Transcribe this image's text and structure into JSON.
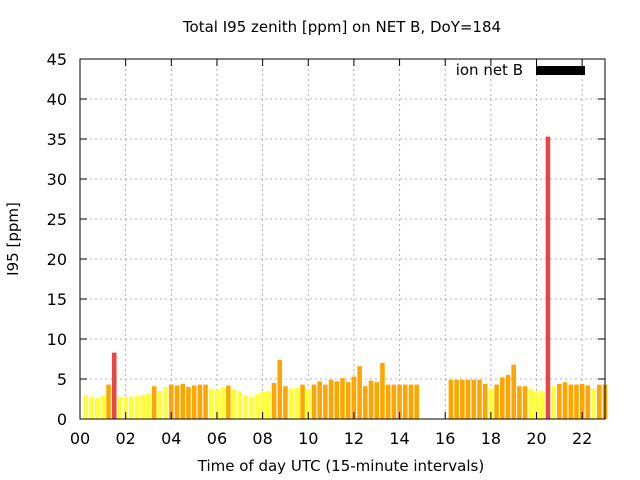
{
  "chart_data": {
    "type": "bar",
    "title": "Total I95 zenith [ppm] on NET B, DoY=184",
    "xlabel": "Time of day UTC (15-minute intervals)",
    "ylabel": "I95 [ppm]",
    "xlim": [
      0,
      23
    ],
    "ylim": [
      0,
      45
    ],
    "x_ticks": [
      "00",
      "02",
      "04",
      "06",
      "08",
      "10",
      "12",
      "14",
      "16",
      "18",
      "20",
      "22"
    ],
    "x_tick_values": [
      0,
      2,
      4,
      6,
      8,
      10,
      12,
      14,
      16,
      18,
      20,
      22
    ],
    "y_ticks": [
      0,
      5,
      10,
      15,
      20,
      25,
      30,
      35,
      40,
      45
    ],
    "grid": true,
    "legend_position": "top-right",
    "colors": {
      "low": "#ffff33",
      "medium": "#ffa500",
      "high": "#e84545",
      "legend": "#000000"
    },
    "series": [
      {
        "name": "ion net B",
        "bar_width_hours": 0.2,
        "points": [
          {
            "x": 0.25,
            "y": 3.0,
            "level": "low"
          },
          {
            "x": 0.5,
            "y": 2.8,
            "level": "low"
          },
          {
            "x": 0.75,
            "y": 2.6,
            "level": "low"
          },
          {
            "x": 1.0,
            "y": 2.9,
            "level": "low"
          },
          {
            "x": 1.25,
            "y": 4.3,
            "level": "medium"
          },
          {
            "x": 1.5,
            "y": 8.3,
            "level": "high"
          },
          {
            "x": 1.75,
            "y": 2.8,
            "level": "low"
          },
          {
            "x": 2.0,
            "y": 2.8,
            "level": "low"
          },
          {
            "x": 2.25,
            "y": 2.8,
            "level": "low"
          },
          {
            "x": 2.5,
            "y": 2.9,
            "level": "low"
          },
          {
            "x": 2.75,
            "y": 3.0,
            "level": "low"
          },
          {
            "x": 3.0,
            "y": 3.2,
            "level": "low"
          },
          {
            "x": 3.25,
            "y": 4.1,
            "level": "medium"
          },
          {
            "x": 3.5,
            "y": 3.5,
            "level": "low"
          },
          {
            "x": 3.75,
            "y": 4.0,
            "level": "low"
          },
          {
            "x": 4.0,
            "y": 4.3,
            "level": "medium"
          },
          {
            "x": 4.25,
            "y": 4.2,
            "level": "medium"
          },
          {
            "x": 4.5,
            "y": 4.4,
            "level": "medium"
          },
          {
            "x": 4.75,
            "y": 4.0,
            "level": "medium"
          },
          {
            "x": 5.0,
            "y": 4.2,
            "level": "medium"
          },
          {
            "x": 5.25,
            "y": 4.3,
            "level": "medium"
          },
          {
            "x": 5.5,
            "y": 4.3,
            "level": "medium"
          },
          {
            "x": 5.75,
            "y": 3.8,
            "level": "low"
          },
          {
            "x": 6.0,
            "y": 3.6,
            "level": "low"
          },
          {
            "x": 6.25,
            "y": 3.9,
            "level": "low"
          },
          {
            "x": 6.5,
            "y": 4.2,
            "level": "medium"
          },
          {
            "x": 6.75,
            "y": 3.7,
            "level": "low"
          },
          {
            "x": 7.0,
            "y": 3.5,
            "level": "low"
          },
          {
            "x": 7.25,
            "y": 3.0,
            "level": "low"
          },
          {
            "x": 7.5,
            "y": 2.8,
            "level": "low"
          },
          {
            "x": 7.75,
            "y": 3.1,
            "level": "low"
          },
          {
            "x": 8.0,
            "y": 3.4,
            "level": "low"
          },
          {
            "x": 8.25,
            "y": 3.5,
            "level": "low"
          },
          {
            "x": 8.5,
            "y": 4.5,
            "level": "medium"
          },
          {
            "x": 8.75,
            "y": 7.4,
            "level": "medium"
          },
          {
            "x": 9.0,
            "y": 4.1,
            "level": "medium"
          },
          {
            "x": 9.25,
            "y": 3.8,
            "level": "low"
          },
          {
            "x": 9.5,
            "y": 3.9,
            "level": "low"
          },
          {
            "x": 9.75,
            "y": 4.3,
            "level": "medium"
          },
          {
            "x": 10.0,
            "y": 3.7,
            "level": "low"
          },
          {
            "x": 10.25,
            "y": 4.3,
            "level": "medium"
          },
          {
            "x": 10.5,
            "y": 4.7,
            "level": "medium"
          },
          {
            "x": 10.75,
            "y": 4.3,
            "level": "medium"
          },
          {
            "x": 11.0,
            "y": 4.9,
            "level": "medium"
          },
          {
            "x": 11.25,
            "y": 4.7,
            "level": "medium"
          },
          {
            "x": 11.5,
            "y": 5.1,
            "level": "medium"
          },
          {
            "x": 11.75,
            "y": 4.6,
            "level": "medium"
          },
          {
            "x": 12.0,
            "y": 5.3,
            "level": "medium"
          },
          {
            "x": 12.25,
            "y": 6.6,
            "level": "medium"
          },
          {
            "x": 12.5,
            "y": 4.1,
            "level": "medium"
          },
          {
            "x": 12.75,
            "y": 4.8,
            "level": "medium"
          },
          {
            "x": 13.0,
            "y": 4.6,
            "level": "medium"
          },
          {
            "x": 13.25,
            "y": 7.0,
            "level": "medium"
          },
          {
            "x": 13.5,
            "y": 4.3,
            "level": "medium"
          },
          {
            "x": 13.75,
            "y": 4.3,
            "level": "medium"
          },
          {
            "x": 14.0,
            "y": 4.3,
            "level": "medium"
          },
          {
            "x": 14.25,
            "y": 4.3,
            "level": "medium"
          },
          {
            "x": 14.5,
            "y": 4.3,
            "level": "medium"
          },
          {
            "x": 14.75,
            "y": 4.3,
            "level": "medium"
          },
          {
            "x": 16.25,
            "y": 4.9,
            "level": "medium"
          },
          {
            "x": 16.5,
            "y": 4.9,
            "level": "medium"
          },
          {
            "x": 16.75,
            "y": 4.9,
            "level": "medium"
          },
          {
            "x": 17.0,
            "y": 4.9,
            "level": "medium"
          },
          {
            "x": 17.25,
            "y": 4.9,
            "level": "medium"
          },
          {
            "x": 17.5,
            "y": 4.9,
            "level": "medium"
          },
          {
            "x": 17.75,
            "y": 4.4,
            "level": "medium"
          },
          {
            "x": 18.0,
            "y": 3.8,
            "level": "low"
          },
          {
            "x": 18.25,
            "y": 4.3,
            "level": "medium"
          },
          {
            "x": 18.5,
            "y": 5.2,
            "level": "medium"
          },
          {
            "x": 18.75,
            "y": 5.5,
            "level": "medium"
          },
          {
            "x": 19.0,
            "y": 6.8,
            "level": "medium"
          },
          {
            "x": 19.25,
            "y": 4.1,
            "level": "medium"
          },
          {
            "x": 19.5,
            "y": 4.1,
            "level": "medium"
          },
          {
            "x": 19.75,
            "y": 3.8,
            "level": "low"
          },
          {
            "x": 20.0,
            "y": 3.4,
            "level": "low"
          },
          {
            "x": 20.25,
            "y": 3.5,
            "level": "low"
          },
          {
            "x": 20.5,
            "y": 35.3,
            "level": "high"
          },
          {
            "x": 20.75,
            "y": 4.1,
            "level": "low"
          },
          {
            "x": 21.0,
            "y": 4.4,
            "level": "medium"
          },
          {
            "x": 21.25,
            "y": 4.6,
            "level": "medium"
          },
          {
            "x": 21.5,
            "y": 4.3,
            "level": "medium"
          },
          {
            "x": 21.75,
            "y": 4.3,
            "level": "medium"
          },
          {
            "x": 22.0,
            "y": 4.4,
            "level": "medium"
          },
          {
            "x": 22.25,
            "y": 4.2,
            "level": "medium"
          },
          {
            "x": 22.5,
            "y": 3.8,
            "level": "low"
          },
          {
            "x": 22.75,
            "y": 4.3,
            "level": "medium"
          },
          {
            "x": 23.0,
            "y": 4.3,
            "level": "medium"
          }
        ]
      }
    ]
  }
}
